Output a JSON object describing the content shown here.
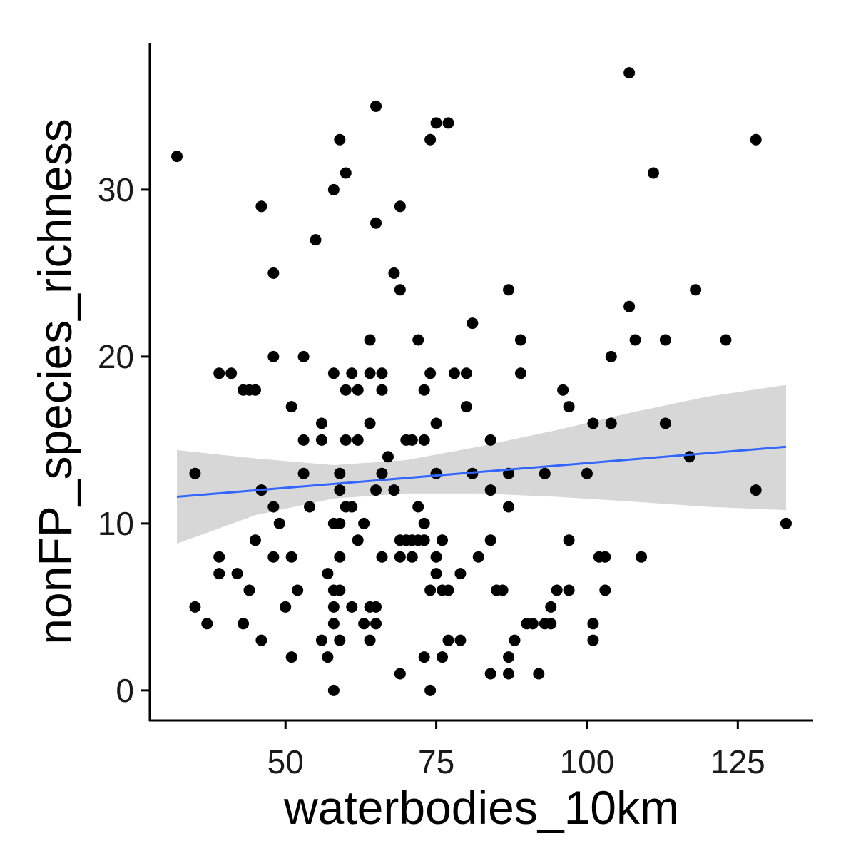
{
  "chart_data": {
    "type": "scatter",
    "title": "",
    "xlabel": "waterbodies_10km",
    "ylabel": "nonFP_species_richness",
    "xlim": [
      27.5,
      137.5
    ],
    "ylim": [
      -1.8,
      38.8
    ],
    "x_ticks": [
      50,
      75,
      100,
      125
    ],
    "y_ticks": [
      0,
      10,
      20,
      30
    ],
    "grid": false,
    "legend": "none",
    "colors": {
      "points": "#000000",
      "fit_line": "#3366ff",
      "ribbon": "#bdbdbd",
      "axis": "#000000"
    },
    "points": [
      [
        32,
        32
      ],
      [
        35,
        13
      ],
      [
        35,
        5
      ],
      [
        37,
        4
      ],
      [
        39,
        19
      ],
      [
        39,
        8
      ],
      [
        39,
        7
      ],
      [
        41,
        19
      ],
      [
        42,
        7
      ],
      [
        43,
        18
      ],
      [
        43,
        4
      ],
      [
        44,
        18
      ],
      [
        44,
        6
      ],
      [
        45,
        18
      ],
      [
        45,
        9
      ],
      [
        46,
        29
      ],
      [
        46,
        12
      ],
      [
        46,
        3
      ],
      [
        48,
        25
      ],
      [
        48,
        20
      ],
      [
        48,
        11
      ],
      [
        48,
        8
      ],
      [
        49,
        10
      ],
      [
        50,
        5
      ],
      [
        51,
        17
      ],
      [
        51,
        8
      ],
      [
        51,
        2
      ],
      [
        52,
        6
      ],
      [
        53,
        20
      ],
      [
        53,
        15
      ],
      [
        53,
        13
      ],
      [
        54,
        11
      ],
      [
        55,
        27
      ],
      [
        56,
        16
      ],
      [
        56,
        15
      ],
      [
        56,
        3
      ],
      [
        57,
        7
      ],
      [
        57,
        2
      ],
      [
        58,
        30
      ],
      [
        58,
        19
      ],
      [
        58,
        10
      ],
      [
        58,
        6
      ],
      [
        58,
        5
      ],
      [
        58,
        4
      ],
      [
        58,
        0
      ],
      [
        59,
        33
      ],
      [
        59,
        13
      ],
      [
        59,
        12
      ],
      [
        59,
        10
      ],
      [
        59,
        8
      ],
      [
        59,
        6
      ],
      [
        59,
        3
      ],
      [
        60,
        31
      ],
      [
        60,
        18
      ],
      [
        60,
        15
      ],
      [
        60,
        11
      ],
      [
        61,
        19
      ],
      [
        61,
        11
      ],
      [
        61,
        5
      ],
      [
        62,
        18
      ],
      [
        62,
        15
      ],
      [
        62,
        9
      ],
      [
        63,
        10
      ],
      [
        63,
        4
      ],
      [
        64,
        21
      ],
      [
        64,
        19
      ],
      [
        64,
        16
      ],
      [
        64,
        5
      ],
      [
        64,
        3
      ],
      [
        65,
        35
      ],
      [
        65,
        28
      ],
      [
        65,
        12
      ],
      [
        65,
        5
      ],
      [
        65,
        4
      ],
      [
        66,
        19
      ],
      [
        66,
        18
      ],
      [
        66,
        13
      ],
      [
        66,
        8
      ],
      [
        67,
        14
      ],
      [
        68,
        25
      ],
      [
        68,
        12
      ],
      [
        69,
        29
      ],
      [
        69,
        24
      ],
      [
        69,
        9
      ],
      [
        69,
        8
      ],
      [
        69,
        1
      ],
      [
        70,
        15
      ],
      [
        70,
        9
      ],
      [
        71,
        15
      ],
      [
        71,
        9
      ],
      [
        71,
        8
      ],
      [
        72,
        21
      ],
      [
        72,
        11
      ],
      [
        72,
        9
      ],
      [
        73,
        18
      ],
      [
        73,
        15
      ],
      [
        73,
        10
      ],
      [
        73,
        9
      ],
      [
        73,
        2
      ],
      [
        74,
        33
      ],
      [
        74,
        19
      ],
      [
        74,
        6
      ],
      [
        74,
        0
      ],
      [
        75,
        34
      ],
      [
        75,
        16
      ],
      [
        75,
        13
      ],
      [
        75,
        8
      ],
      [
        75,
        7
      ],
      [
        76,
        9
      ],
      [
        76,
        6
      ],
      [
        76,
        2
      ],
      [
        77,
        34
      ],
      [
        77,
        6
      ],
      [
        77,
        3
      ],
      [
        78,
        19
      ],
      [
        79,
        7
      ],
      [
        79,
        3
      ],
      [
        80,
        19
      ],
      [
        80,
        17
      ],
      [
        81,
        22
      ],
      [
        81,
        13
      ],
      [
        82,
        8
      ],
      [
        84,
        15
      ],
      [
        84,
        12
      ],
      [
        84,
        9
      ],
      [
        84,
        1
      ],
      [
        85,
        6
      ],
      [
        86,
        6
      ],
      [
        87,
        24
      ],
      [
        87,
        13
      ],
      [
        87,
        11
      ],
      [
        87,
        2
      ],
      [
        87,
        1
      ],
      [
        88,
        3
      ],
      [
        89,
        21
      ],
      [
        89,
        19
      ],
      [
        90,
        4
      ],
      [
        91,
        4
      ],
      [
        92,
        1
      ],
      [
        93,
        13
      ],
      [
        93,
        4
      ],
      [
        94,
        5
      ],
      [
        94,
        4
      ],
      [
        95,
        6
      ],
      [
        96,
        18
      ],
      [
        97,
        17
      ],
      [
        97,
        9
      ],
      [
        97,
        6
      ],
      [
        100,
        13
      ],
      [
        101,
        16
      ],
      [
        101,
        4
      ],
      [
        101,
        3
      ],
      [
        102,
        8
      ],
      [
        103,
        8
      ],
      [
        103,
        6
      ],
      [
        104,
        20
      ],
      [
        104,
        16
      ],
      [
        107,
        37
      ],
      [
        107,
        23
      ],
      [
        108,
        21
      ],
      [
        109,
        8
      ],
      [
        111,
        31
      ],
      [
        113,
        21
      ],
      [
        113,
        16
      ],
      [
        117,
        14
      ],
      [
        118,
        24
      ],
      [
        123,
        21
      ],
      [
        128,
        33
      ],
      [
        128,
        12
      ],
      [
        133,
        10
      ]
    ],
    "fit": {
      "x": [
        32,
        133
      ],
      "y": [
        11.6,
        14.6
      ],
      "ribbon": [
        {
          "x": 32,
          "lo": 8.8,
          "hi": 14.4
        },
        {
          "x": 45,
          "lo": 10.5,
          "hi": 13.9
        },
        {
          "x": 58,
          "lo": 11.5,
          "hi": 13.5
        },
        {
          "x": 70,
          "lo": 11.8,
          "hi": 13.8
        },
        {
          "x": 82,
          "lo": 11.8,
          "hi": 14.6
        },
        {
          "x": 95,
          "lo": 11.6,
          "hi": 15.6
        },
        {
          "x": 108,
          "lo": 11.3,
          "hi": 16.7
        },
        {
          "x": 120,
          "lo": 11.0,
          "hi": 17.6
        },
        {
          "x": 133,
          "lo": 10.8,
          "hi": 18.3
        }
      ]
    }
  }
}
